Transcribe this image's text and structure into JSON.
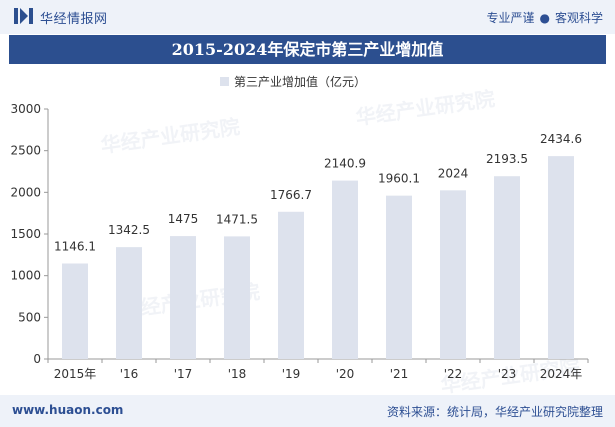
{
  "header": {
    "brand": "华经情报网",
    "tagline_left": "专业严谨",
    "tagline_right": "客观科学"
  },
  "watermark": "华经产业研究院",
  "footer": {
    "site": "www.huaon.com",
    "source": "资料来源：统计局，华经产业研究院整理"
  },
  "colors": {
    "bar": "#dde2ed",
    "brand": "#2c4f8f"
  },
  "chart_data": {
    "type": "bar",
    "title": "2015-2024年保定市第三产业增加值",
    "categories": [
      "2015年",
      "'16",
      "'17",
      "'18",
      "'19",
      "'20",
      "'21",
      "'22",
      "'23",
      "2024年"
    ],
    "series": [
      {
        "name": "第三产业增加值（亿元）",
        "values": [
          1146.1,
          1342.5,
          1475,
          1471.5,
          1766.7,
          2140.9,
          1960.1,
          2024,
          2193.5,
          2434.6
        ],
        "labels": [
          "1146.1",
          "1342.5",
          "1475",
          "1471.5",
          "1766.7",
          "2140.9",
          "1960.1",
          "2024",
          "2193.5",
          "2434.6"
        ]
      }
    ],
    "yticks": [
      "0",
      "500",
      "1000",
      "1500",
      "2000",
      "2500",
      "3000"
    ],
    "ylim": [
      0,
      3000
    ],
    "grid": false,
    "legend_position": "top-center"
  }
}
